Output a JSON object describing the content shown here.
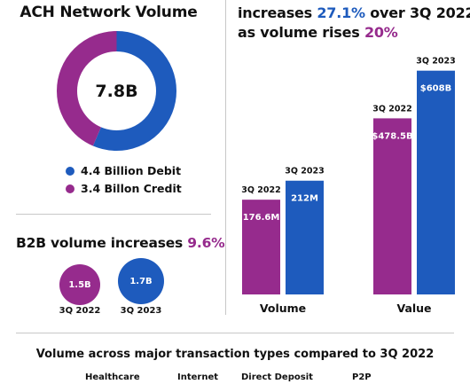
{
  "colors": {
    "debit": "#1e5bbd",
    "credit": "#962b8d"
  },
  "donut": {
    "title": "ACH Network Volume",
    "total": "7.8B",
    "legend": [
      {
        "label": "4.4 Billion Debit",
        "color": "#1e5bbd"
      },
      {
        "label": "3.4 Billon Credit",
        "color": "#962b8d"
      }
    ]
  },
  "headline": {
    "line1_pre": "increases ",
    "line1_pct": "27.1%",
    "line1_post": " over 3Q 2022",
    "line2_pre": "as volume rises ",
    "line2_pct": "20%"
  },
  "b2b": {
    "title_pre": "B2B volume increases ",
    "title_pct": "9.6%",
    "bubbles": [
      {
        "value": "1.5B",
        "label": "3Q 2022",
        "color": "#962b8d"
      },
      {
        "value": "1.7B",
        "label": "3Q 2023",
        "color": "#1e5bbd"
      }
    ]
  },
  "bars": {
    "groups": [
      {
        "name": "Volume",
        "bars": [
          {
            "period": "3Q 2022",
            "label": "176.6M",
            "value": 176.6,
            "color": "#962b8d"
          },
          {
            "period": "3Q 2023",
            "label": "212M",
            "value": 212,
            "color": "#1e5bbd"
          }
        ]
      },
      {
        "name": "Value",
        "bars": [
          {
            "period": "3Q 2022",
            "label": "$478.5B",
            "value": 478.5,
            "color": "#962b8d"
          },
          {
            "period": "3Q 2023",
            "label": "$608B",
            "value": 608,
            "color": "#1e5bbd"
          }
        ]
      }
    ]
  },
  "bottom": {
    "title": "Volume across major transaction types compared to 3Q 2022",
    "categories": [
      "Healthcare",
      "Internet",
      "Direct Deposit",
      "P2P"
    ]
  },
  "chart_data": [
    {
      "type": "pie",
      "title": "ACH Network Volume",
      "categories": [
        "Debit",
        "Credit"
      ],
      "values": [
        4.4,
        3.4
      ],
      "total": "7.8B",
      "legend": "right"
    },
    {
      "type": "bar",
      "categories": [
        "3Q 2022",
        "3Q 2023"
      ],
      "series": [
        {
          "name": "Volume",
          "values": [
            176.6,
            212
          ]
        },
        {
          "name": "Value",
          "values": [
            478.5,
            608
          ]
        }
      ]
    },
    {
      "type": "bar",
      "title": "B2B volume increases 9.6%",
      "categories": [
        "3Q 2022",
        "3Q 2023"
      ],
      "values": [
        1.5,
        1.7
      ]
    }
  ]
}
